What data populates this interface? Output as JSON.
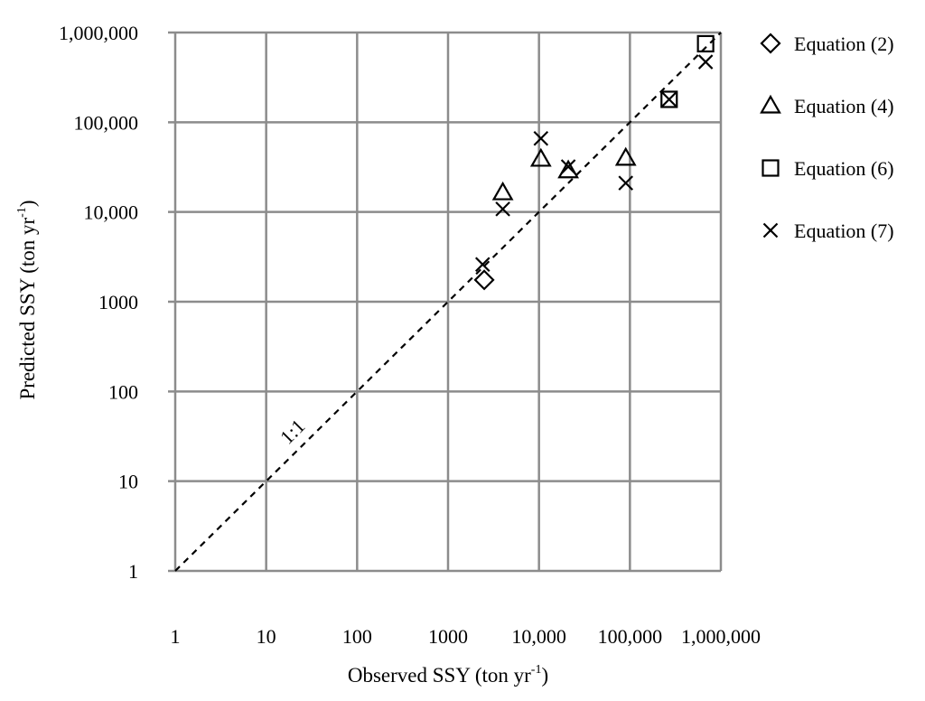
{
  "chart_data": {
    "type": "scatter",
    "scale": "log-log",
    "xlabel": "Observed SSY (ton yr",
    "ylabel": "Predicted SSY (ton yr",
    "label_superscript": "-1",
    "label_suffix": ")",
    "xlim": [
      1,
      1000000
    ],
    "ylim": [
      1,
      1000000
    ],
    "grid": true,
    "legend_position": "right",
    "x_tick_labels": [
      "1",
      "10",
      "100",
      "1000",
      "10,000",
      "100,000",
      "1,000,000"
    ],
    "y_tick_labels": [
      "1",
      "10",
      "100",
      "1000",
      "10,000",
      "100,000",
      "1,000,000"
    ],
    "reference_line": {
      "label": "1:1",
      "x": [
        1,
        1000000
      ],
      "y": [
        1,
        1000000
      ]
    },
    "series": [
      {
        "name": "Equation (2)",
        "marker": "diamond",
        "x": [
          2500
        ],
        "y": [
          1750
        ]
      },
      {
        "name": "Equation (4)",
        "marker": "triangle",
        "x": [
          4000,
          10500,
          21000,
          90000
        ],
        "y": [
          16500,
          39000,
          29000,
          40000
        ]
      },
      {
        "name": "Equation (6)",
        "marker": "square",
        "x": [
          270000,
          680000
        ],
        "y": [
          180000,
          750000
        ]
      },
      {
        "name": "Equation (7)",
        "marker": "x",
        "x": [
          2400,
          4000,
          10500,
          21000,
          90000,
          270000,
          680000
        ],
        "y": [
          2600,
          10800,
          66000,
          32000,
          21000,
          180000,
          470000
        ]
      }
    ]
  }
}
